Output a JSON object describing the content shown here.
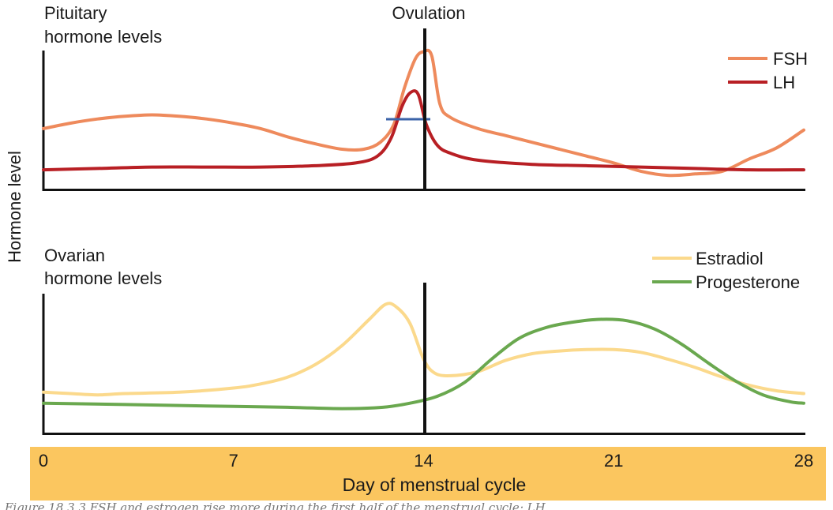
{
  "chart_data": {
    "type": "line",
    "ylabel": "Hormone level",
    "xlabel": "Day of menstrual cycle",
    "xlim": [
      0,
      28
    ],
    "x_ticks": [
      "0",
      "7",
      "14",
      "21",
      "28"
    ],
    "marker": {
      "label": "Ovulation",
      "x": 14
    },
    "panels": [
      {
        "title": "Pituitary\nhormone levels",
        "ylim": [
          0,
          1
        ],
        "series": [
          {
            "name": "FSH",
            "color": "#ee8a5c",
            "points": [
              [
                0,
                0.42
              ],
              [
                1,
                0.46
              ],
              [
                2,
                0.49
              ],
              [
                3,
                0.51
              ],
              [
                4,
                0.52
              ],
              [
                5,
                0.51
              ],
              [
                6,
                0.49
              ],
              [
                7,
                0.46
              ],
              [
                8,
                0.42
              ],
              [
                9,
                0.36
              ],
              [
                10,
                0.31
              ],
              [
                11,
                0.27
              ],
              [
                11.8,
                0.27
              ],
              [
                12.4,
                0.32
              ],
              [
                12.9,
                0.45
              ],
              [
                13.3,
                0.72
              ],
              [
                13.7,
                0.93
              ],
              [
                14.0,
                0.98
              ],
              [
                14.3,
                0.95
              ],
              [
                14.6,
                0.6
              ],
              [
                15,
                0.5
              ],
              [
                16,
                0.42
              ],
              [
                17,
                0.37
              ],
              [
                18,
                0.32
              ],
              [
                19,
                0.27
              ],
              [
                20,
                0.22
              ],
              [
                21,
                0.17
              ],
              [
                22,
                0.11
              ],
              [
                23,
                0.08
              ],
              [
                24,
                0.09
              ],
              [
                25,
                0.11
              ],
              [
                26,
                0.2
              ],
              [
                27,
                0.28
              ],
              [
                28,
                0.41
              ]
            ]
          },
          {
            "name": "LH",
            "color": "#b81f24",
            "points": [
              [
                0,
                0.12
              ],
              [
                2,
                0.13
              ],
              [
                4,
                0.14
              ],
              [
                6,
                0.14
              ],
              [
                8,
                0.14
              ],
              [
                10,
                0.15
              ],
              [
                11.5,
                0.17
              ],
              [
                12.3,
                0.22
              ],
              [
                12.8,
                0.35
              ],
              [
                13.2,
                0.58
              ],
              [
                13.5,
                0.68
              ],
              [
                13.8,
                0.67
              ],
              [
                14.1,
                0.45
              ],
              [
                14.5,
                0.3
              ],
              [
                15,
                0.24
              ],
              [
                16,
                0.19
              ],
              [
                18,
                0.16
              ],
              [
                20,
                0.15
              ],
              [
                22,
                0.14
              ],
              [
                24,
                0.13
              ],
              [
                26,
                0.12
              ],
              [
                28,
                0.12
              ]
            ]
          }
        ]
      },
      {
        "title": "Ovarian\nhormone levels",
        "ylim": [
          0,
          1
        ],
        "series": [
          {
            "name": "Estradiol",
            "color": "#fbd98c",
            "points": [
              [
                0,
                0.26
              ],
              [
                1,
                0.25
              ],
              [
                2,
                0.24
              ],
              [
                3,
                0.25
              ],
              [
                5,
                0.26
              ],
              [
                7,
                0.29
              ],
              [
                8,
                0.32
              ],
              [
                9,
                0.37
              ],
              [
                10,
                0.46
              ],
              [
                11,
                0.6
              ],
              [
                12,
                0.79
              ],
              [
                12.6,
                0.9
              ],
              [
                13.0,
                0.88
              ],
              [
                13.5,
                0.76
              ],
              [
                14.0,
                0.5
              ],
              [
                14.4,
                0.4
              ],
              [
                15,
                0.38
              ],
              [
                16,
                0.41
              ],
              [
                17,
                0.49
              ],
              [
                18,
                0.54
              ],
              [
                19,
                0.56
              ],
              [
                20,
                0.57
              ],
              [
                21,
                0.57
              ],
              [
                22,
                0.55
              ],
              [
                23,
                0.5
              ],
              [
                24,
                0.44
              ],
              [
                25,
                0.37
              ],
              [
                26,
                0.31
              ],
              [
                27,
                0.27
              ],
              [
                28,
                0.25
              ]
            ]
          },
          {
            "name": "Progesterone",
            "color": "#6aa84f",
            "points": [
              [
                0,
                0.18
              ],
              [
                3,
                0.17
              ],
              [
                6,
                0.16
              ],
              [
                9,
                0.15
              ],
              [
                11,
                0.14
              ],
              [
                12.5,
                0.15
              ],
              [
                13.5,
                0.18
              ],
              [
                14.5,
                0.23
              ],
              [
                15.5,
                0.33
              ],
              [
                16.5,
                0.5
              ],
              [
                17.5,
                0.65
              ],
              [
                18.5,
                0.73
              ],
              [
                19.5,
                0.77
              ],
              [
                20.5,
                0.79
              ],
              [
                21.5,
                0.78
              ],
              [
                22.5,
                0.72
              ],
              [
                23.5,
                0.61
              ],
              [
                24.5,
                0.47
              ],
              [
                25.5,
                0.34
              ],
              [
                26.5,
                0.24
              ],
              [
                27.5,
                0.19
              ],
              [
                28,
                0.18
              ]
            ]
          }
        ]
      }
    ]
  },
  "caption": "Figure 18.3.3 FSH and estrogen rise more during the first half of the menstrual cycle; LH"
}
